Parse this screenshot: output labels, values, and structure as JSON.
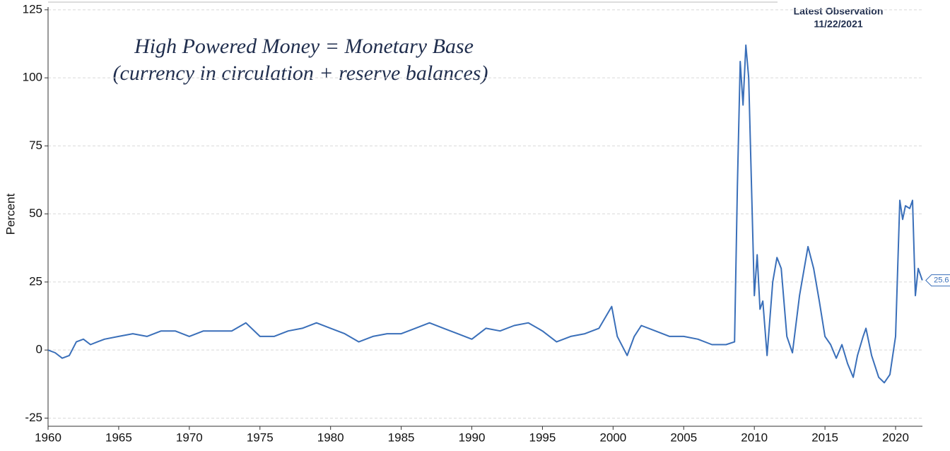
{
  "chart_data": {
    "type": "line",
    "annotations": [
      "High Powered Money = Monetary Base",
      "(currency in circulation + reserve balances)"
    ],
    "latest_observation": {
      "title": "Latest Observation",
      "date": "11/22/2021"
    },
    "y_label": "Percent",
    "xlim": [
      1960,
      2021.9
    ],
    "ylim": [
      -28,
      126
    ],
    "xticks": [
      1960,
      1965,
      1970,
      1975,
      1980,
      1985,
      1990,
      1995,
      2000,
      2005,
      2010,
      2015,
      2020
    ],
    "yticks": [
      -25,
      0,
      25,
      50,
      75,
      100,
      125
    ],
    "grid": true,
    "x": [
      1960,
      1960.5,
      1961,
      1961.5,
      1962,
      1962.5,
      1963,
      1963.5,
      1964,
      1965,
      1966,
      1967,
      1968,
      1969,
      1970,
      1971,
      1972,
      1973,
      1974,
      1975,
      1976,
      1977,
      1978,
      1979,
      1980,
      1981,
      1982,
      1983,
      1984,
      1985,
      1986,
      1987,
      1988,
      1989,
      1990,
      1991,
      1992,
      1993,
      1994,
      1995,
      1996,
      1997,
      1998,
      1999,
      1999.9,
      2000.3,
      2001,
      2001.5,
      2002,
      2003,
      2004,
      2005,
      2006,
      2007,
      2008,
      2008.6,
      2008.8,
      2009,
      2009.2,
      2009.4,
      2009.6,
      2009.8,
      2010,
      2010.2,
      2010.4,
      2010.6,
      2010.9,
      2011.3,
      2011.6,
      2011.9,
      2012.3,
      2012.7,
      2013.2,
      2013.8,
      2014.2,
      2014.6,
      2015,
      2015.4,
      2015.8,
      2016.2,
      2016.6,
      2017,
      2017.3,
      2017.7,
      2017.9,
      2018.3,
      2018.8,
      2019.2,
      2019.6,
      2020,
      2020.3,
      2020.5,
      2020.7,
      2021,
      2021.2,
      2021.4,
      2021.6,
      2021.89
    ],
    "series": [
      {
        "name": "Monetary Base",
        "color": "#3a6fb9",
        "values": [
          0,
          -1,
          -3,
          -2,
          3,
          4,
          2,
          3,
          4,
          5,
          6,
          5,
          7,
          7,
          5,
          7,
          7,
          7,
          10,
          5,
          5,
          7,
          8,
          10,
          8,
          6,
          3,
          5,
          6,
          6,
          8,
          10,
          8,
          6,
          4,
          8,
          7,
          9,
          10,
          7,
          3,
          5,
          6,
          8,
          16,
          5,
          -2,
          5,
          9,
          7,
          5,
          5,
          4,
          2,
          2,
          3,
          60,
          106,
          90,
          112,
          100,
          60,
          20,
          35,
          15,
          18,
          -2,
          25,
          34,
          30,
          5,
          -1,
          20,
          38,
          30,
          18,
          5,
          2,
          -3,
          2,
          -5,
          -10,
          -2,
          5,
          8,
          -2,
          -10,
          -12,
          -9,
          5,
          55,
          48,
          53,
          52,
          55,
          20,
          30,
          25.6
        ],
        "end_label": "25.6"
      }
    ]
  }
}
